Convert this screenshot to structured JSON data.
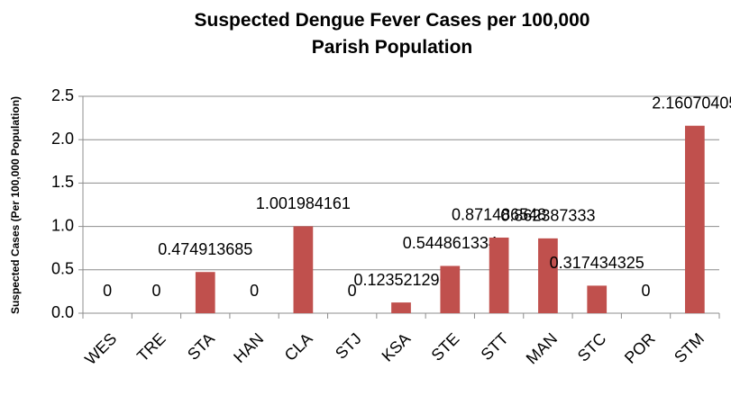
{
  "chart_data": {
    "type": "bar",
    "title": "Suspected Dengue Fever Cases per 100,000 Parish Population",
    "y_label": "Suspected Cases (Per 100,000 Population)",
    "categories": [
      "WES",
      "TRE",
      "STA",
      "HAN",
      "CLA",
      "STJ",
      "KSA",
      "STE",
      "STT",
      "MAN",
      "STC",
      "POR",
      "STM"
    ],
    "values": [
      0,
      0,
      0.474913685,
      0,
      1.001984161,
      0,
      0.123521296,
      0.544861334,
      0.871486548,
      0.862387333,
      0.317434325,
      0,
      2.16070405
    ],
    "color": "#c0504d",
    "ylim": [
      0,
      2.5
    ],
    "yticks": [
      {
        "value": 0,
        "label": "0.0"
      },
      0.5,
      {
        "value": 1,
        "label": "1.0"
      },
      1.5,
      {
        "value": 2,
        "label": "2.0"
      },
      2.5
    ],
    "grid": true
  }
}
